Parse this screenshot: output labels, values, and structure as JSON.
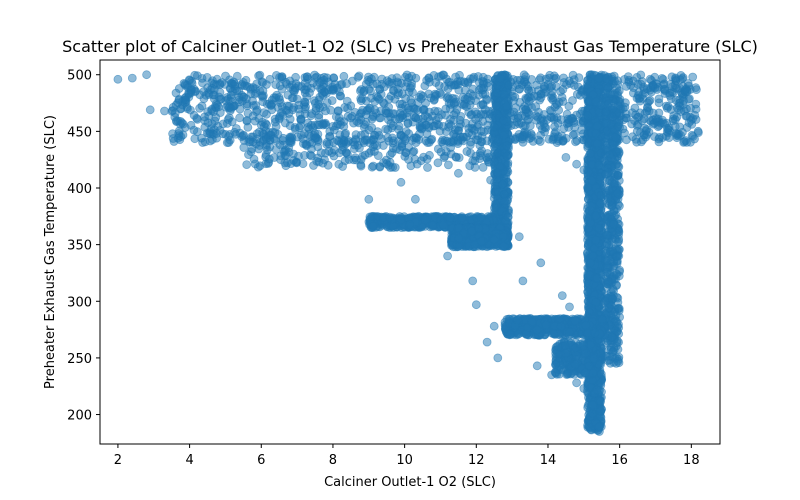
{
  "chart_data": {
    "type": "scatter",
    "title": "Scatter plot of Calciner Outlet-1 O2 (SLC) vs Preheater Exhaust Gas Temperature (SLC)",
    "xlabel": "Calciner Outlet-1 O2 (SLC)",
    "ylabel": "Preheater Exhaust Gas Temperature (SLC)",
    "xlim": [
      1.5,
      18.8
    ],
    "ylim": [
      174,
      513
    ],
    "xticks": [
      2,
      4,
      6,
      8,
      10,
      12,
      14,
      16,
      18
    ],
    "yticks": [
      200,
      250,
      300,
      350,
      400,
      450,
      500
    ],
    "grid": false,
    "marker_color": "#1f77b4",
    "marker_alpha": 0.5,
    "scatter_regions": [
      {
        "description": "main dense band",
        "x": [
          3.5,
          18.2
        ],
        "y": [
          440,
          500
        ],
        "density": "very high"
      },
      {
        "description": "lower dense band",
        "x": [
          5.5,
          12.5
        ],
        "y": [
          418,
          445
        ],
        "density": "medium"
      },
      {
        "description": "vertical column near x=12.7",
        "x": [
          12.5,
          12.9
        ],
        "y": [
          350,
          500
        ],
        "density": "high"
      },
      {
        "description": "horizontal band at ~370",
        "x": [
          9.0,
          12.5
        ],
        "y": [
          365,
          375
        ],
        "density": "high"
      },
      {
        "description": "band at ~355",
        "x": [
          11.3,
          12.9
        ],
        "y": [
          348,
          365
        ],
        "density": "high"
      },
      {
        "description": "right dense column x≈15.3",
        "x": [
          15.1,
          15.5
        ],
        "y": [
          185,
          500
        ],
        "density": "very high"
      },
      {
        "description": "column x≈15.8",
        "x": [
          15.6,
          16.0
        ],
        "y": [
          245,
          500
        ],
        "density": "high"
      },
      {
        "description": "horizontal band at ~278",
        "x": [
          12.8,
          15.6
        ],
        "y": [
          270,
          285
        ],
        "density": "high"
      },
      {
        "description": "diagonal band",
        "x": [
          14.2,
          15.3
        ],
        "y": [
          235,
          265
        ],
        "density": "medium"
      }
    ],
    "scatter_outliers": [
      [
        2.0,
        496
      ],
      [
        2.4,
        497
      ],
      [
        2.8,
        500
      ],
      [
        2.9,
        469
      ],
      [
        3.3,
        468
      ],
      [
        9.0,
        390
      ],
      [
        9.9,
        405
      ],
      [
        10.3,
        390
      ],
      [
        11.2,
        340
      ],
      [
        11.3,
        430
      ],
      [
        11.5,
        413
      ],
      [
        11.9,
        318
      ],
      [
        12.0,
        297
      ],
      [
        12.3,
        264
      ],
      [
        12.4,
        407
      ],
      [
        12.5,
        278
      ],
      [
        12.6,
        250
      ],
      [
        13.2,
        357
      ],
      [
        13.3,
        318
      ],
      [
        13.8,
        334
      ],
      [
        13.7,
        243
      ],
      [
        14.1,
        235
      ],
      [
        14.4,
        305
      ],
      [
        14.6,
        295
      ],
      [
        14.8,
        228
      ],
      [
        15.0,
        223
      ],
      [
        14.5,
        427
      ],
      [
        14.8,
        421
      ],
      [
        15.0,
        416
      ]
    ]
  }
}
